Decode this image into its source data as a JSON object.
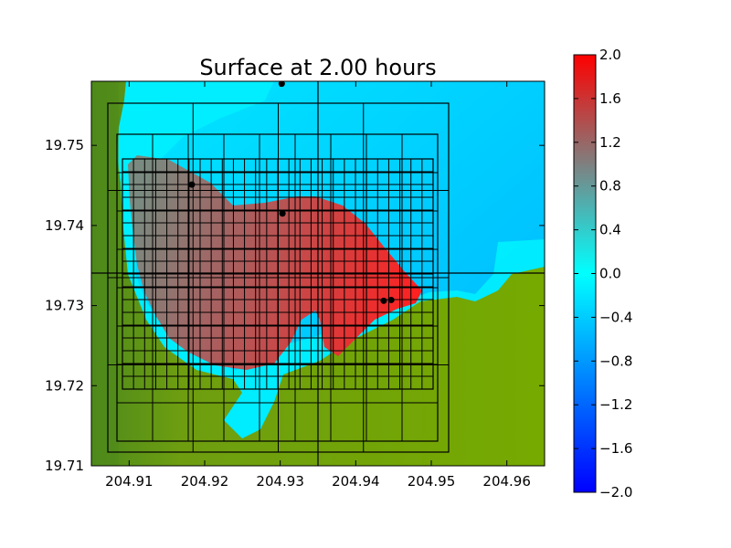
{
  "chart_data": {
    "type": "heatmap",
    "title": "Surface at 2.00 hours",
    "xlabel": "",
    "ylabel": "",
    "xlim": [
      204.905,
      204.965
    ],
    "ylim": [
      19.71,
      19.758
    ],
    "xticks": [
      {
        "value": 204.91,
        "label": "204.91"
      },
      {
        "value": 204.92,
        "label": "204.92"
      },
      {
        "value": 204.93,
        "label": "204.93"
      },
      {
        "value": 204.94,
        "label": "204.94"
      },
      {
        "value": 204.95,
        "label": "204.95"
      },
      {
        "value": 204.96,
        "label": "204.96"
      }
    ],
    "yticks": [
      {
        "value": 19.71,
        "label": "19.71"
      },
      {
        "value": 19.72,
        "label": "19.72"
      },
      {
        "value": 19.73,
        "label": "19.73"
      },
      {
        "value": 19.74,
        "label": "19.74"
      },
      {
        "value": 19.75,
        "label": "19.75"
      }
    ],
    "colorbar": {
      "range": [
        -2.0,
        2.0
      ],
      "colors": [
        "#0000ff",
        "#00ffff",
        "#ff0000"
      ],
      "ticks": [
        {
          "value": 2.0,
          "label": "2.0"
        },
        {
          "value": 1.6,
          "label": "1.6"
        },
        {
          "value": 1.2,
          "label": "1.2"
        },
        {
          "value": 0.8,
          "label": "0.8"
        },
        {
          "value": 0.4,
          "label": "0.4"
        },
        {
          "value": 0.0,
          "label": "0.0"
        },
        {
          "value": -0.4,
          "label": "−0.4"
        },
        {
          "value": -0.8,
          "label": "−0.8"
        },
        {
          "value": -1.2,
          "label": "−1.2"
        },
        {
          "value": -1.6,
          "label": "−1.6"
        },
        {
          "value": -2.0,
          "label": "−2.0"
        }
      ]
    },
    "colors": {
      "land": "#74a800",
      "land_dark": "#4e8a1c",
      "ocean": "#00c8ff",
      "nearshore": "#00f0ff",
      "flood_high": "#ff2020",
      "flood_mid": "#a06060",
      "grid_lines": "#000000"
    },
    "gauges": [
      {
        "x": 204.9302,
        "y": 19.7577
      },
      {
        "x": 204.9183,
        "y": 19.7451
      },
      {
        "x": 204.9303,
        "y": 19.7415
      },
      {
        "x": 204.9437,
        "y": 19.7306
      },
      {
        "x": 204.9447,
        "y": 19.7307
      }
    ]
  }
}
